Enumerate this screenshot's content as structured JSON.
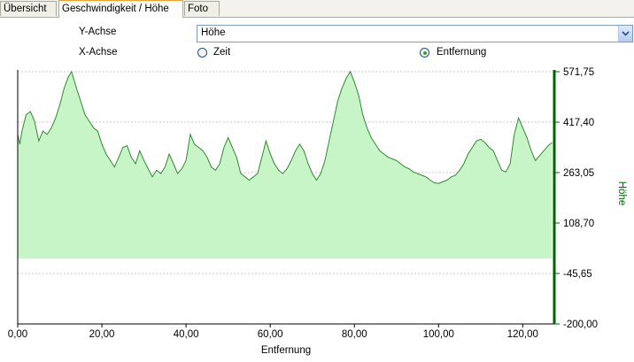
{
  "tabs": [
    {
      "label": "Übersicht"
    },
    {
      "label": "Geschwindigkeit / Höhe"
    },
    {
      "label": "Foto"
    }
  ],
  "controls": {
    "y_axis_label": "Y-Achse",
    "x_axis_label": "X-Achse",
    "y_axis_value": "Höhe",
    "x_options": [
      {
        "label": "Zeit",
        "checked": false
      },
      {
        "label": "Entfernung",
        "checked": true
      }
    ]
  },
  "chart_data": {
    "type": "area",
    "xlabel": "Entfernung",
    "ylabel": "Höhe",
    "xlim": [
      0,
      127.5
    ],
    "ylim": [
      -200,
      571.75
    ],
    "x_ticks": [
      "0,00",
      "20,00",
      "40,00",
      "60,00",
      "80,00",
      "100,00",
      "120,00"
    ],
    "y_ticks": [
      "571,75",
      "417,40",
      "263,05",
      "108,70",
      "-45,65",
      "-200,00"
    ],
    "fill_bottom": 0,
    "colors": {
      "line": "#2e8b2e",
      "fill": "#c8f5c8",
      "axis": "#006400"
    },
    "series": [
      {
        "x": [
          0,
          0.5,
          1,
          2,
          3,
          4,
          5,
          6,
          6.5,
          7,
          8,
          9,
          10,
          11,
          12,
          12.8,
          14,
          15,
          16,
          17,
          18,
          19,
          20,
          21,
          22,
          23,
          24,
          25,
          26,
          27,
          28,
          29,
          30,
          31,
          32,
          33,
          34,
          35,
          36,
          37,
          38,
          39,
          40,
          41,
          42,
          43,
          44,
          45,
          46,
          47,
          48,
          49,
          50,
          51,
          52,
          53,
          54,
          55,
          56,
          57,
          58,
          59,
          60,
          61,
          62,
          63,
          64,
          65,
          66,
          67,
          68,
          69,
          70,
          71,
          72,
          73,
          74,
          75,
          76,
          77,
          78,
          79,
          80,
          81,
          82,
          83,
          84,
          85,
          86,
          87,
          88,
          89,
          90,
          91,
          92,
          93,
          94,
          95,
          96,
          97,
          98,
          99,
          100,
          101,
          102,
          103,
          104,
          105,
          106,
          107,
          108,
          109,
          110,
          111,
          112,
          113,
          114,
          115,
          116,
          117,
          118,
          119,
          120,
          121,
          122,
          123,
          124,
          125,
          126,
          127
        ],
        "y": [
          380,
          350,
          390,
          440,
          450,
          420,
          360,
          390,
          385,
          380,
          400,
          430,
          470,
          520,
          555,
          572,
          520,
          480,
          440,
          420,
          400,
          390,
          350,
          320,
          300,
          280,
          310,
          340,
          345,
          310,
          290,
          330,
          300,
          275,
          250,
          270,
          260,
          280,
          320,
          290,
          260,
          275,
          300,
          380,
          350,
          340,
          330,
          310,
          280,
          270,
          290,
          340,
          370,
          340,
          310,
          260,
          250,
          240,
          250,
          260,
          310,
          360,
          320,
          290,
          270,
          260,
          275,
          300,
          330,
          350,
          330,
          290,
          260,
          240,
          260,
          300,
          360,
          420,
          480,
          520,
          550,
          572,
          540,
          500,
          440,
          400,
          370,
          350,
          330,
          320,
          310,
          305,
          300,
          290,
          280,
          275,
          265,
          260,
          255,
          250,
          240,
          232,
          230,
          235,
          240,
          250,
          255,
          270,
          290,
          320,
          340,
          360,
          365,
          355,
          340,
          330,
          300,
          270,
          265,
          290,
          380,
          430,
          400,
          370,
          330,
          300,
          315,
          330,
          345,
          355
        ]
      }
    ]
  }
}
